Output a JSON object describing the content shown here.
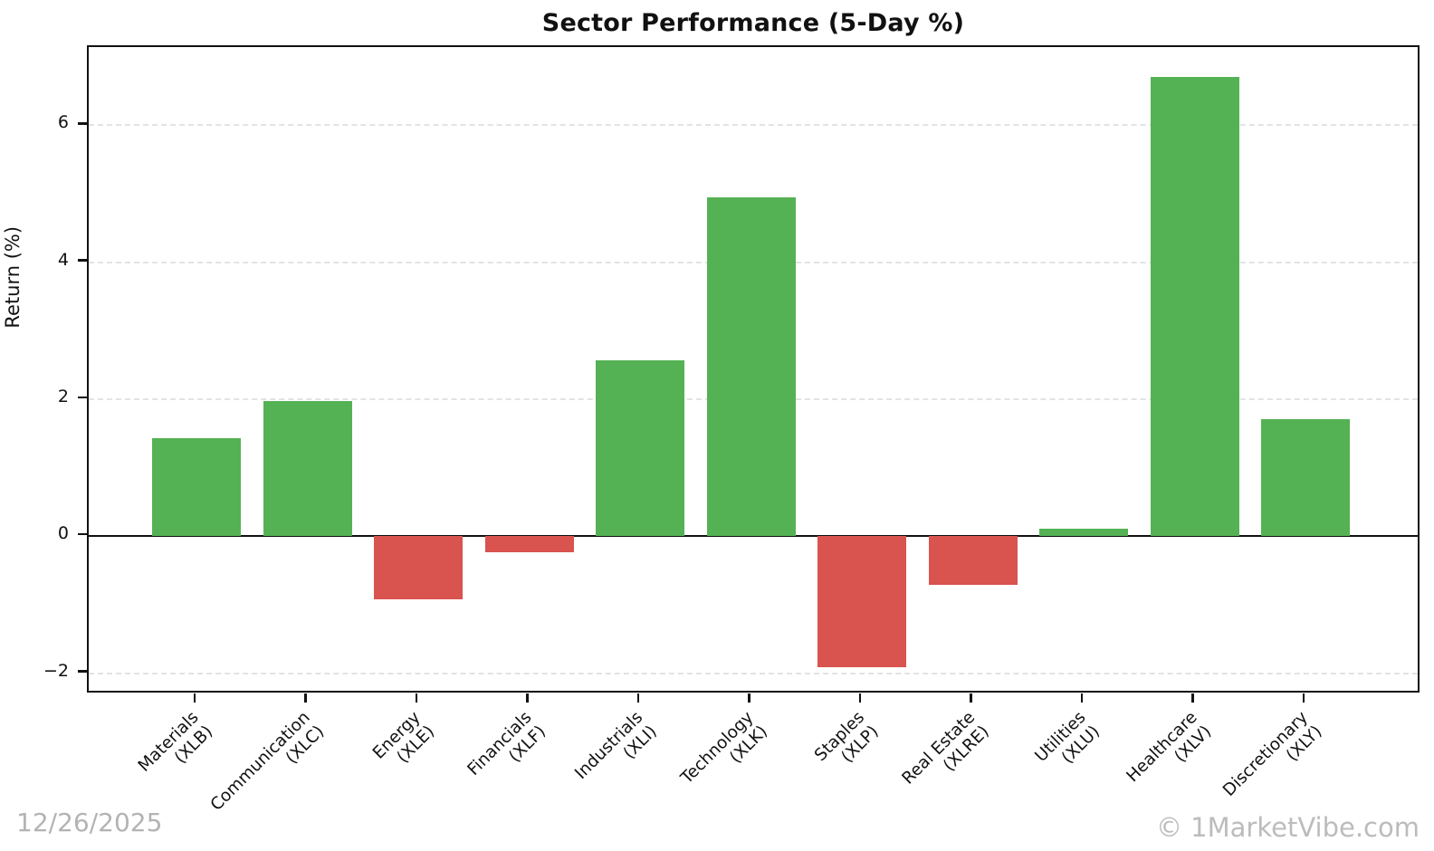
{
  "title": "Sector Performance (5-Day %)",
  "watermarks": {
    "date": "12/26/2025",
    "brand": "© 1MarketVibe.com"
  },
  "colors": {
    "positive_bar": "#54b254",
    "negative_bar": "#d9534f",
    "gridline": "#e3e3e3",
    "axis": "#111111",
    "watermark": "#b3b3b3"
  },
  "chart_data": {
    "type": "bar",
    "title": "Sector Performance (5-Day %)",
    "xlabel": "",
    "ylabel": "Return (%)",
    "categories": [
      "Materials (XLB)",
      "Communication (XLC)",
      "Energy (XLE)",
      "Financials (XLF)",
      "Industrials (XLI)",
      "Technology (XLK)",
      "Staples (XLP)",
      "Real Estate (XLRE)",
      "Utilities (XLU)",
      "Healthcare (XLV)",
      "Discretionary (XLY)"
    ],
    "tick_labels": [
      {
        "line1": "Materials",
        "line2": "(XLB)"
      },
      {
        "line1": "Communication",
        "line2": "(XLC)"
      },
      {
        "line1": "Energy",
        "line2": "(XLE)"
      },
      {
        "line1": "Financials",
        "line2": "(XLF)"
      },
      {
        "line1": "Industrials",
        "line2": "(XLI)"
      },
      {
        "line1": "Technology",
        "line2": "(XLK)"
      },
      {
        "line1": "Staples",
        "line2": "(XLP)"
      },
      {
        "line1": "Real Estate",
        "line2": "(XLRE)"
      },
      {
        "line1": "Utilities",
        "line2": "(XLU)"
      },
      {
        "line1": "Healthcare",
        "line2": "(XLV)"
      },
      {
        "line1": "Discretionary",
        "line2": "(XLY)"
      }
    ],
    "values": [
      1.43,
      1.97,
      -0.92,
      -0.23,
      2.57,
      4.94,
      -1.92,
      -0.71,
      0.11,
      6.7,
      1.71
    ],
    "bar_colors_rule": "green if value >= 0 else red",
    "ylim": [
      -2.31,
      7.14
    ],
    "yticks": [
      {
        "v": -2,
        "label": "−2"
      },
      {
        "v": 0,
        "label": "0"
      },
      {
        "v": 2,
        "label": "2"
      },
      {
        "v": 4,
        "label": "4"
      },
      {
        "v": 6,
        "label": "6"
      }
    ],
    "grid": "horizontal dashed gridlines at yticks, solid black line at 0",
    "legend": "none"
  }
}
